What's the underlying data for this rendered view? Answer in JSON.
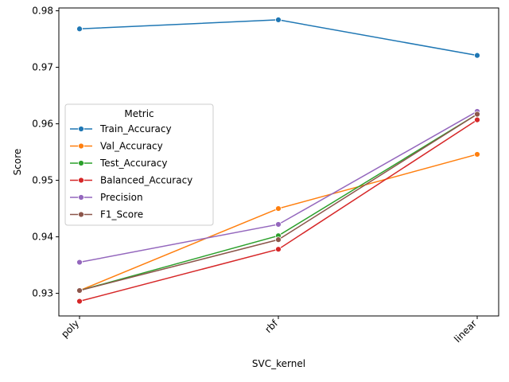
{
  "chart_data": {
    "type": "line",
    "title": "",
    "xlabel": "SVC_kernel",
    "ylabel": "Score",
    "categories": [
      "poly",
      "rbf",
      "linear"
    ],
    "ylim": [
      0.926,
      0.9805
    ],
    "yticks": [
      0.93,
      0.94,
      0.95,
      0.96,
      0.97,
      0.98
    ],
    "ytick_labels": [
      "0.93",
      "0.94",
      "0.95",
      "0.96",
      "0.97",
      "0.98"
    ],
    "grid": false,
    "legend": {
      "title": "Metric",
      "placement": "center-left"
    },
    "series": [
      {
        "name": "Train_Accuracy",
        "color": "#1f77b4",
        "values": [
          0.9768,
          0.9784,
          0.9721
        ]
      },
      {
        "name": "Val_Accuracy",
        "color": "#ff7f0e",
        "values": [
          0.9305,
          0.945,
          0.9546
        ]
      },
      {
        "name": "Test_Accuracy",
        "color": "#2ca02c",
        "values": [
          0.9305,
          0.9402,
          0.9617
        ]
      },
      {
        "name": "Balanced_Accuracy",
        "color": "#d62728",
        "values": [
          0.9286,
          0.9378,
          0.9607
        ]
      },
      {
        "name": "Precision",
        "color": "#9467bd",
        "values": [
          0.9355,
          0.9422,
          0.9622
        ]
      },
      {
        "name": "F1_Score",
        "color": "#8c564b",
        "values": [
          0.9305,
          0.9395,
          0.9617
        ]
      }
    ]
  }
}
